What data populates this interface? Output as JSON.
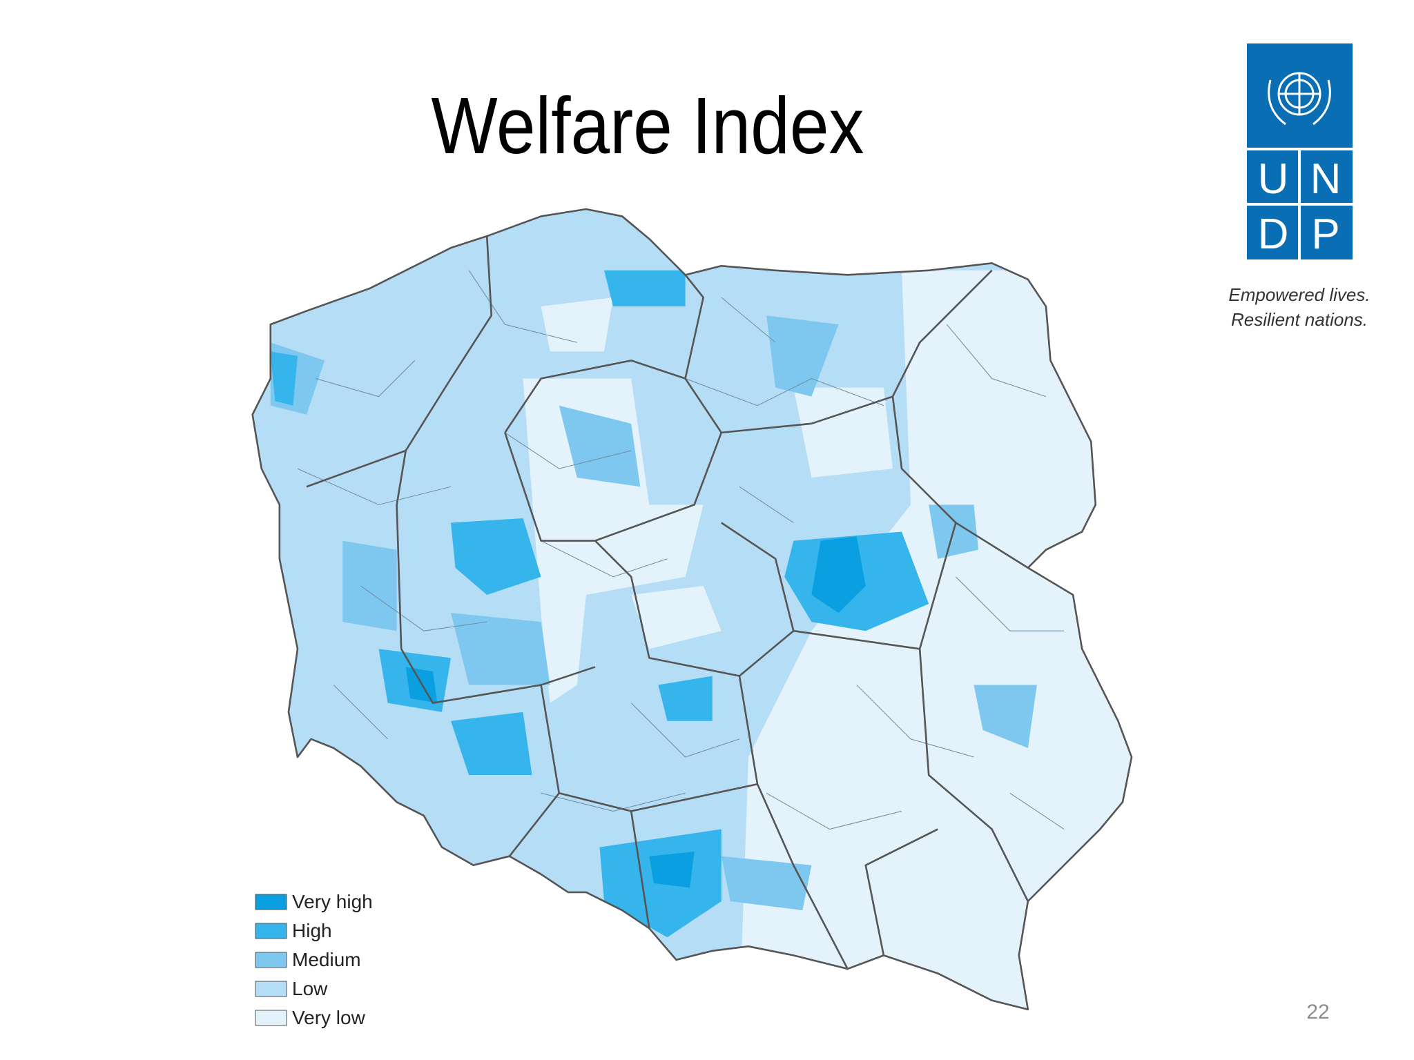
{
  "title": "Welfare Index",
  "logo": {
    "letters": [
      "U",
      "N",
      "D",
      "P"
    ],
    "tagline": [
      "Empowered lives.",
      "Resilient nations."
    ]
  },
  "legend": [
    {
      "label": "Very high",
      "color": "#0a9fe0"
    },
    {
      "label": "High",
      "color": "#35b5ec"
    },
    {
      "label": "Medium",
      "color": "#7ec8ef"
    },
    {
      "label": "Low",
      "color": "#b5ddf5"
    },
    {
      "label": "Very low",
      "color": "#e3f2fb"
    }
  ],
  "page_number": "22"
}
